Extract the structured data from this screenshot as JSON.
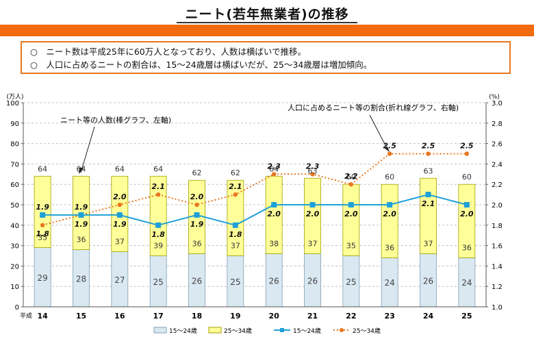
{
  "page": {
    "title": "ニート(若年無業者)の推移",
    "summary": [
      "○　ニート数は平成25年に60万人となっており、人数は横ばいで推移。",
      "○　人口に占めるニートの割合は、15～24歳層は横ばいだが、25～34歳層は増加傾向。"
    ]
  },
  "chart_data": {
    "type": "bar",
    "categories": [
      "14",
      "15",
      "16",
      "17",
      "18",
      "19",
      "20",
      "21",
      "22",
      "23",
      "24",
      "25"
    ],
    "x_prefix": "平成",
    "left_unit": "(万人)",
    "right_unit": "(%)",
    "ylim": [
      0,
      100
    ],
    "y2lim": [
      1.0,
      3.0
    ],
    "left_ticks": [
      0,
      10,
      20,
      30,
      40,
      50,
      60,
      70,
      80,
      90,
      100
    ],
    "right_ticks": [
      "1.0",
      "1.2",
      "1.4",
      "1.6",
      "1.8",
      "2.0",
      "2.2",
      "2.4",
      "2.6",
      "2.8",
      "3.0"
    ],
    "grid": "horizontal dashed",
    "stacked_series": [
      {
        "name": "15～24歳",
        "values": [
          29,
          28,
          27,
          25,
          26,
          25,
          26,
          26,
          25,
          24,
          26,
          24
        ],
        "color": "#d9e8f1"
      },
      {
        "name": "25～34歳",
        "values": [
          35,
          36,
          37,
          39,
          36,
          37,
          38,
          37,
          35,
          36,
          37,
          36
        ],
        "color": "#ffff99"
      }
    ],
    "totals": [
      64,
      64,
      64,
      64,
      62,
      62,
      64,
      63,
      60,
      60,
      63,
      60
    ],
    "line_series": [
      {
        "name": "15～24歳",
        "values": [
          1.9,
          1.9,
          1.9,
          1.8,
          1.9,
          1.8,
          2.0,
          2.0,
          2.0,
          2.0,
          2.1,
          2.0
        ],
        "labels": [
          "1.9",
          "1.9",
          "1.9",
          "1.8",
          "1.9",
          "1.8",
          "2.0",
          "2.0",
          "2.0",
          "2.0",
          "2.1",
          "2.0"
        ],
        "color": "#1fa0d8",
        "style": "solid square markers"
      },
      {
        "name": "25～34歳",
        "values": [
          1.8,
          1.9,
          2.0,
          2.1,
          2.0,
          2.1,
          2.3,
          2.3,
          2.2,
          2.5,
          2.5,
          2.5
        ],
        "labels": [
          "1.8",
          "1.9",
          "2.0",
          "2.1",
          "2.0",
          "2.1",
          "2.3",
          "2.3",
          "2.2",
          "2.5",
          "2.5",
          "2.5"
        ],
        "color": "#e8761d",
        "style": "dotted circle markers"
      }
    ],
    "annotations": [
      "ニート等の人数(棒グラフ、左軸)",
      "人口に占めるニート等の割合(折れ線グラフ、右軸)"
    ],
    "legend_position": "bottom"
  }
}
